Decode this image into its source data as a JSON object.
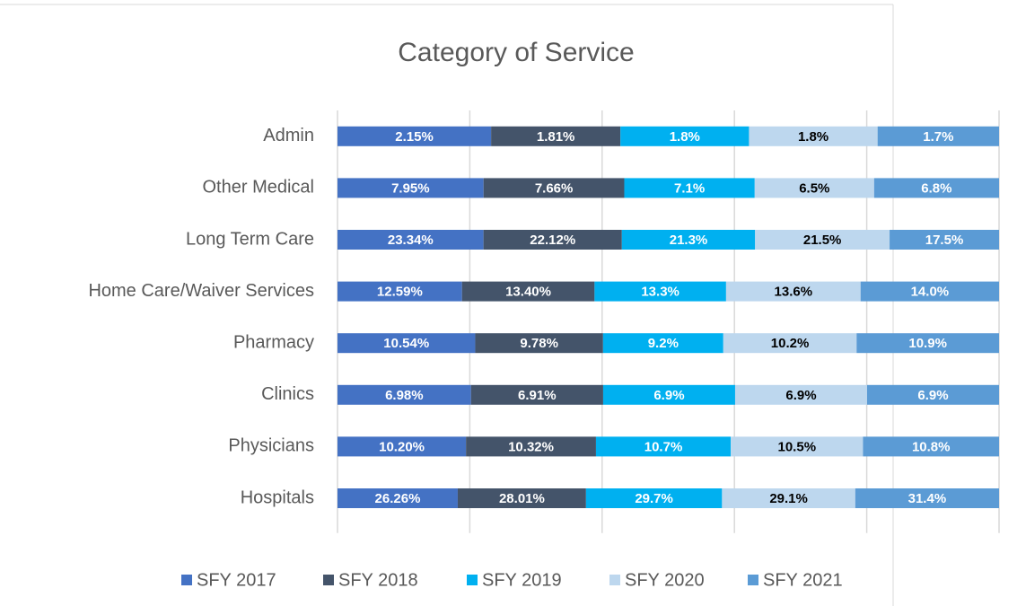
{
  "chart_data": {
    "type": "bar",
    "orientation": "horizontal",
    "stack": "percent",
    "title": "Category of Service",
    "categories": [
      "Admin",
      "Other Medical",
      "Long Term Care",
      "Home Care/Waiver Services",
      "Pharmacy",
      "Clinics",
      "Physicians",
      "Hospitals"
    ],
    "series": [
      {
        "name": "SFY 2017",
        "color": "#4472c4",
        "values": [
          2.15,
          7.95,
          23.34,
          12.59,
          10.54,
          6.98,
          10.2,
          26.26
        ],
        "value_labels": [
          "2.15%",
          "7.95%",
          "23.34%",
          "12.59%",
          "10.54%",
          "6.98%",
          "10.20%",
          "26.26%"
        ]
      },
      {
        "name": "SFY 2018",
        "color": "#44546a",
        "values": [
          1.81,
          7.66,
          22.12,
          13.4,
          9.78,
          6.91,
          10.32,
          28.01
        ],
        "value_labels": [
          "1.81%",
          "7.66%",
          "22.12%",
          "13.40%",
          "9.78%",
          "6.91%",
          "10.32%",
          "28.01%"
        ]
      },
      {
        "name": "SFY 2019",
        "color": "#00b0f0",
        "values": [
          1.8,
          7.1,
          21.3,
          13.3,
          9.2,
          6.9,
          10.7,
          29.7
        ],
        "value_labels": [
          "1.8%",
          "7.1%",
          "21.3%",
          "13.3%",
          "9.2%",
          "6.9%",
          "10.7%",
          "29.7%"
        ]
      },
      {
        "name": "SFY 2020",
        "color": "#bdd7ee",
        "values": [
          1.8,
          6.5,
          21.5,
          13.6,
          10.2,
          6.9,
          10.5,
          29.1
        ],
        "value_labels": [
          "1.8%",
          "6.5%",
          "21.5%",
          "13.6%",
          "10.2%",
          "6.9%",
          "10.5%",
          "29.1%"
        ]
      },
      {
        "name": "SFY 2021",
        "color": "#5b9bd5",
        "values": [
          1.7,
          6.8,
          17.5,
          14.0,
          10.9,
          6.9,
          10.8,
          31.4
        ],
        "value_labels": [
          "1.7%",
          "6.8%",
          "17.5%",
          "14.0%",
          "10.9%",
          "6.9%",
          "10.8%",
          "31.4%"
        ]
      }
    ],
    "xlim": [
      0,
      100
    ],
    "xticks": [
      0,
      20,
      40,
      60,
      80,
      100
    ],
    "grid": true,
    "legend": "bottom"
  }
}
